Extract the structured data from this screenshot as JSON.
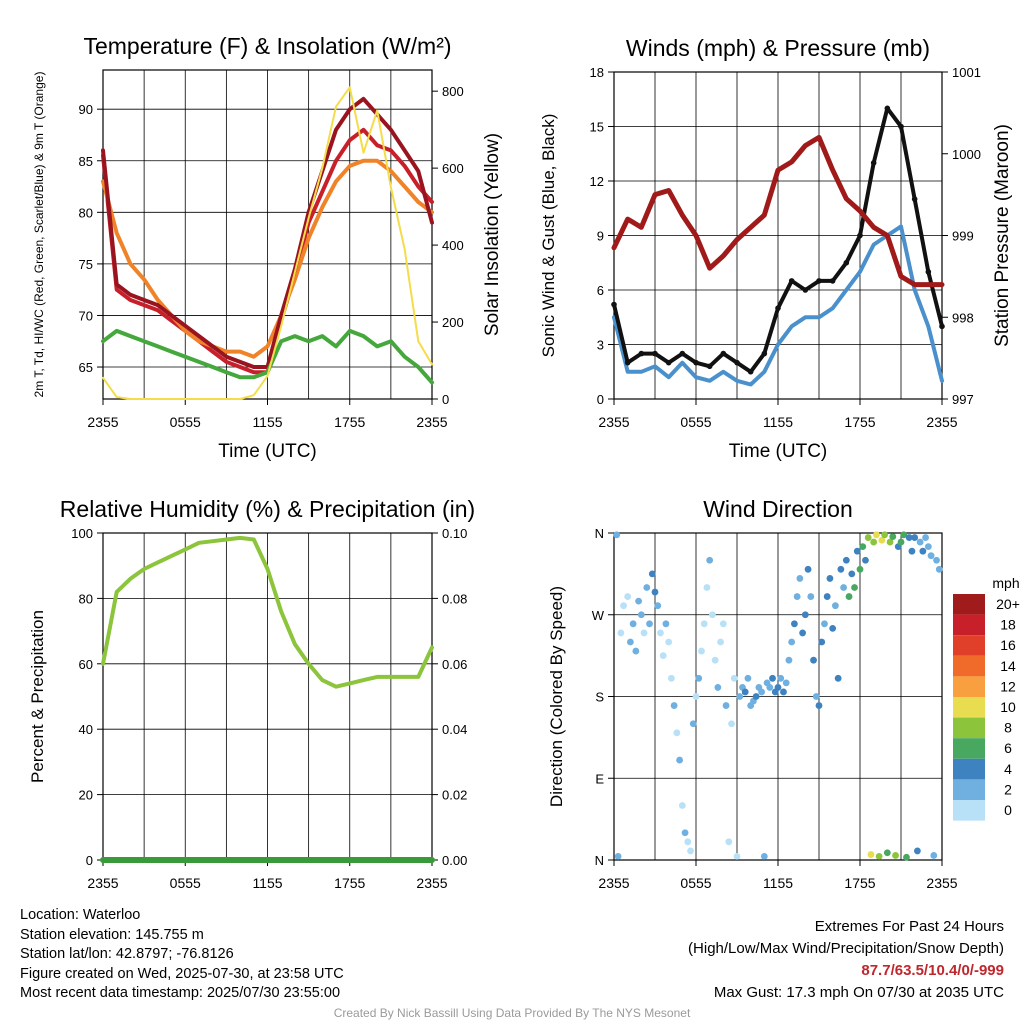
{
  "chart_data": [
    {
      "type": "line",
      "title": "Temperature (F) & Insolation (W/m²)",
      "xlabel": "Time (UTC)",
      "ylabel_left": "2m T, Td, HI/WC (Red, Green, Scarlet/Blue) & 9m T (Orange)",
      "ylabel_right": "Solar Insolation (Yellow)",
      "x_ticks": [
        "2355",
        "0555",
        "1155",
        "1755",
        "2355"
      ],
      "y_ticks_left": [
        "65",
        "70",
        "75",
        "80",
        "85",
        "90"
      ],
      "y_ticks_right": [
        "0",
        "200",
        "400",
        "600",
        "800"
      ],
      "ylim_left": [
        61.9,
        93.8
      ],
      "ylim_right": [
        0,
        855
      ],
      "grid": true,
      "x_hours": [
        0,
        1,
        2,
        3,
        4,
        5,
        6,
        7,
        8,
        9,
        10,
        11,
        12,
        13,
        14,
        15,
        16,
        17,
        18,
        19,
        20,
        21,
        22,
        23,
        24
      ],
      "series": [
        {
          "key": "t2m",
          "color": "#c8202a",
          "axis": "left",
          "values": [
            85.5,
            72.5,
            71.5,
            71,
            70.5,
            69.5,
            68.5,
            67.5,
            66.5,
            65.5,
            65,
            64.5,
            64.5,
            69.5,
            74,
            79,
            82,
            85,
            87,
            88,
            86.5,
            86,
            84.5,
            82.5,
            81
          ]
        },
        {
          "key": "t9m",
          "color": "#f08228",
          "axis": "left",
          "values": [
            83,
            78,
            75,
            73.5,
            71.5,
            70,
            68.5,
            67.5,
            67,
            66.5,
            66.5,
            66,
            67,
            70,
            73.5,
            77.5,
            80.5,
            83,
            84.5,
            85,
            85,
            84,
            82.5,
            81,
            80
          ]
        },
        {
          "key": "hi",
          "color": "#9a1420",
          "axis": "left",
          "values": [
            86,
            73,
            72,
            71.5,
            71,
            70,
            69,
            68,
            67,
            66,
            65.5,
            65,
            65,
            70,
            74.5,
            80,
            84,
            88,
            90,
            91,
            89.5,
            88,
            86,
            84,
            79
          ]
        },
        {
          "key": "td",
          "color": "#45a83c",
          "axis": "left",
          "values": [
            67.5,
            68.5,
            68,
            67.5,
            67,
            66.5,
            66,
            65.5,
            65,
            64.5,
            64,
            64,
            64.5,
            67.5,
            68,
            67.5,
            68,
            67,
            68.5,
            68,
            67,
            67.5,
            66,
            65,
            63.5
          ]
        },
        {
          "key": "solar",
          "color": "#f5dc4a",
          "axis": "right",
          "values": [
            55,
            5,
            0,
            0,
            0,
            0,
            0,
            0,
            0,
            0,
            0,
            10,
            60,
            190,
            330,
            470,
            600,
            760,
            810,
            640,
            750,
            550,
            390,
            150,
            90
          ]
        }
      ]
    },
    {
      "type": "line",
      "title": "Winds (mph) & Pressure (mb)",
      "xlabel": "Time (UTC)",
      "ylabel_left": "Sonic Wind & Gust (Blue, Black)",
      "ylabel_right": "Station Pressure (Maroon)",
      "x_ticks": [
        "2355",
        "0555",
        "1155",
        "1755",
        "2355"
      ],
      "y_ticks_left": [
        "0",
        "3",
        "6",
        "9",
        "12",
        "15",
        "18"
      ],
      "y_ticks_right": [
        "997",
        "998",
        "999",
        "1000",
        "1001"
      ],
      "ylim_left": [
        0,
        18
      ],
      "ylim_right": [
        997,
        1001
      ],
      "grid": true,
      "x_hours": [
        0,
        1,
        2,
        3,
        4,
        5,
        6,
        7,
        8,
        9,
        10,
        11,
        12,
        13,
        14,
        15,
        16,
        17,
        18,
        19,
        20,
        21,
        22,
        23,
        24
      ],
      "series": [
        {
          "key": "wind",
          "color": "#4a90cc",
          "axis": "left",
          "values": [
            4.5,
            1.5,
            1.5,
            1.8,
            1.2,
            2,
            1.2,
            1,
            1.5,
            1,
            0.8,
            1.5,
            3,
            4,
            4.5,
            4.5,
            5,
            6,
            7,
            8.5,
            9,
            9.5,
            6,
            4,
            1
          ]
        },
        {
          "key": "gust",
          "color": "#111111",
          "axis": "left",
          "values": [
            5.2,
            2,
            2.5,
            2.5,
            2,
            2.5,
            2,
            1.8,
            2.5,
            2,
            1.5,
            2.5,
            5,
            6.5,
            6,
            6.5,
            6.5,
            7.5,
            9,
            13,
            16,
            15,
            11,
            7,
            4
          ]
        },
        {
          "key": "pressure",
          "color": "#a01a1a",
          "axis": "right",
          "values": [
            998.85,
            999.2,
            999.1,
            999.5,
            999.55,
            999.25,
            999.0,
            998.6,
            998.75,
            998.95,
            999.1,
            999.25,
            999.8,
            999.9,
            1000.1,
            1000.2,
            999.8,
            999.45,
            999.3,
            999.1,
            999.0,
            998.5,
            998.4,
            998.4,
            998.4
          ]
        }
      ]
    },
    {
      "type": "line",
      "title": "Relative Humidity (%) & Precipitation (in)",
      "ylabel_left": "Percent & Precipitation",
      "x_ticks": [
        "2355",
        "0555",
        "1155",
        "1755",
        "2355"
      ],
      "y_ticks_left": [
        "0",
        "20",
        "40",
        "60",
        "80",
        "100"
      ],
      "y_ticks_right": [
        "0.00",
        "0.02",
        "0.04",
        "0.06",
        "0.08",
        "0.10"
      ],
      "ylim_left": [
        0,
        100
      ],
      "ylim_right": [
        0,
        0.1
      ],
      "grid": true,
      "x_hours": [
        0,
        1,
        2,
        3,
        4,
        5,
        6,
        7,
        8,
        9,
        10,
        11,
        12,
        13,
        14,
        15,
        16,
        17,
        18,
        19,
        20,
        21,
        22,
        23,
        24
      ],
      "series": [
        {
          "key": "rh",
          "color": "#8cc43c",
          "axis": "left",
          "values": [
            60,
            82,
            86,
            89,
            91,
            93,
            95,
            97,
            97.5,
            98,
            98.5,
            98,
            89,
            76,
            66,
            60,
            55,
            53,
            54,
            55,
            56,
            56,
            56,
            56,
            65
          ]
        },
        {
          "key": "precip",
          "color": "#3a9a3a",
          "axis": "right",
          "values": [
            0,
            0,
            0,
            0,
            0,
            0,
            0,
            0,
            0,
            0,
            0,
            0,
            0,
            0,
            0,
            0,
            0,
            0,
            0,
            0,
            0,
            0,
            0,
            0,
            0
          ]
        }
      ]
    },
    {
      "type": "scatter",
      "title": "Wind Direction",
      "ylabel": "Direction (Colored By Speed)",
      "x_ticks": [
        "2355",
        "0555",
        "1155",
        "1755",
        "2355"
      ],
      "y_ticks": [
        "N",
        "E",
        "S",
        "W",
        "N"
      ],
      "ylim": [
        0,
        360
      ],
      "grid": true,
      "colorbar": {
        "title": "mph",
        "labels": [
          "20+",
          "18",
          "16",
          "14",
          "12",
          "10",
          "8",
          "6",
          "4",
          "2",
          "0"
        ],
        "colors": [
          "#a01c1c",
          "#c8202a",
          "#e0402a",
          "#f06a2a",
          "#f8a040",
          "#e8dc50",
          "#8cc43c",
          "#48a860",
          "#3f82c0",
          "#6fb0e0",
          "#b8e0f6"
        ]
      },
      "points": [
        {
          "h": 0.2,
          "dir": 358,
          "spd": 3
        },
        {
          "h": 0.3,
          "dir": 4,
          "spd": 2
        },
        {
          "h": 0.5,
          "dir": 250,
          "spd": 1
        },
        {
          "h": 0.7,
          "dir": 280,
          "spd": 1
        },
        {
          "h": 1.0,
          "dir": 290,
          "spd": 1
        },
        {
          "h": 1.2,
          "dir": 240,
          "spd": 2
        },
        {
          "h": 1.4,
          "dir": 260,
          "spd": 2
        },
        {
          "h": 1.6,
          "dir": 230,
          "spd": 3
        },
        {
          "h": 1.8,
          "dir": 285,
          "spd": 2
        },
        {
          "h": 2.0,
          "dir": 270,
          "spd": 3
        },
        {
          "h": 2.2,
          "dir": 250,
          "spd": 1
        },
        {
          "h": 2.4,
          "dir": 300,
          "spd": 2
        },
        {
          "h": 2.6,
          "dir": 260,
          "spd": 3
        },
        {
          "h": 2.8,
          "dir": 315,
          "spd": 4
        },
        {
          "h": 3.0,
          "dir": 295,
          "spd": 4
        },
        {
          "h": 3.2,
          "dir": 280,
          "spd": 2
        },
        {
          "h": 3.4,
          "dir": 250,
          "spd": 1
        },
        {
          "h": 3.6,
          "dir": 225,
          "spd": 1
        },
        {
          "h": 3.8,
          "dir": 260,
          "spd": 2
        },
        {
          "h": 4.0,
          "dir": 240,
          "spd": 1
        },
        {
          "h": 4.2,
          "dir": 200,
          "spd": 1
        },
        {
          "h": 4.4,
          "dir": 170,
          "spd": 2
        },
        {
          "h": 4.6,
          "dir": 140,
          "spd": 1
        },
        {
          "h": 4.8,
          "dir": 110,
          "spd": 2
        },
        {
          "h": 5.0,
          "dir": 60,
          "spd": 1
        },
        {
          "h": 5.2,
          "dir": 30,
          "spd": 2
        },
        {
          "h": 5.4,
          "dir": 20,
          "spd": 1
        },
        {
          "h": 5.6,
          "dir": 10,
          "spd": 1
        },
        {
          "h": 5.8,
          "dir": 150,
          "spd": 2
        },
        {
          "h": 6.0,
          "dir": 180,
          "spd": 1
        },
        {
          "h": 6.2,
          "dir": 200,
          "spd": 2
        },
        {
          "h": 6.4,
          "dir": 230,
          "spd": 1
        },
        {
          "h": 6.6,
          "dir": 260,
          "spd": 1
        },
        {
          "h": 6.8,
          "dir": 300,
          "spd": 1
        },
        {
          "h": 7.0,
          "dir": 330,
          "spd": 2
        },
        {
          "h": 7.2,
          "dir": 270,
          "spd": 1
        },
        {
          "h": 7.4,
          "dir": 220,
          "spd": 1
        },
        {
          "h": 7.6,
          "dir": 190,
          "spd": 2
        },
        {
          "h": 7.8,
          "dir": 240,
          "spd": 1
        },
        {
          "h": 8.0,
          "dir": 260,
          "spd": 1
        },
        {
          "h": 8.2,
          "dir": 170,
          "spd": 2
        },
        {
          "h": 8.4,
          "dir": 20,
          "spd": 1
        },
        {
          "h": 8.6,
          "dir": 150,
          "spd": 1
        },
        {
          "h": 8.8,
          "dir": 200,
          "spd": 1
        },
        {
          "h": 9.0,
          "dir": 4,
          "spd": 1
        },
        {
          "h": 9.2,
          "dir": 180,
          "spd": 2
        },
        {
          "h": 9.4,
          "dir": 190,
          "spd": 3
        },
        {
          "h": 9.6,
          "dir": 185,
          "spd": 4
        },
        {
          "h": 9.8,
          "dir": 200,
          "spd": 3
        },
        {
          "h": 10.0,
          "dir": 170,
          "spd": 2
        },
        {
          "h": 10.2,
          "dir": 175,
          "spd": 3
        },
        {
          "h": 10.4,
          "dir": 180,
          "spd": 4
        },
        {
          "h": 10.6,
          "dir": 190,
          "spd": 3
        },
        {
          "h": 10.8,
          "dir": 185,
          "spd": 3
        },
        {
          "h": 11.0,
          "dir": 4,
          "spd": 2
        },
        {
          "h": 11.2,
          "dir": 195,
          "spd": 2
        },
        {
          "h": 11.4,
          "dir": 190,
          "spd": 3
        },
        {
          "h": 11.6,
          "dir": 200,
          "spd": 4
        },
        {
          "h": 11.8,
          "dir": 185,
          "spd": 4
        },
        {
          "h": 12.0,
          "dir": 190,
          "spd": 4
        },
        {
          "h": 12.2,
          "dir": 200,
          "spd": 3
        },
        {
          "h": 12.4,
          "dir": 185,
          "spd": 4
        },
        {
          "h": 12.6,
          "dir": 195,
          "spd": 3
        },
        {
          "h": 12.8,
          "dir": 220,
          "spd": 3
        },
        {
          "h": 13.0,
          "dir": 240,
          "spd": 2
        },
        {
          "h": 13.2,
          "dir": 260,
          "spd": 4
        },
        {
          "h": 13.4,
          "dir": 290,
          "spd": 3
        },
        {
          "h": 13.6,
          "dir": 310,
          "spd": 2
        },
        {
          "h": 13.8,
          "dir": 250,
          "spd": 4
        },
        {
          "h": 14.0,
          "dir": 270,
          "spd": 4
        },
        {
          "h": 14.2,
          "dir": 320,
          "spd": 4
        },
        {
          "h": 14.4,
          "dir": 290,
          "spd": 3
        },
        {
          "h": 14.6,
          "dir": 220,
          "spd": 4
        },
        {
          "h": 14.8,
          "dir": 180,
          "spd": 3
        },
        {
          "h": 15.0,
          "dir": 170,
          "spd": 4
        },
        {
          "h": 15.2,
          "dir": 240,
          "spd": 4
        },
        {
          "h": 15.4,
          "dir": 260,
          "spd": 3
        },
        {
          "h": 15.6,
          "dir": 290,
          "spd": 4
        },
        {
          "h": 15.8,
          "dir": 310,
          "spd": 5
        },
        {
          "h": 16.0,
          "dir": 255,
          "spd": 4
        },
        {
          "h": 16.2,
          "dir": 280,
          "spd": 3
        },
        {
          "h": 16.4,
          "dir": 200,
          "spd": 4
        },
        {
          "h": 16.6,
          "dir": 320,
          "spd": 4
        },
        {
          "h": 16.8,
          "dir": 300,
          "spd": 3
        },
        {
          "h": 17.0,
          "dir": 330,
          "spd": 4
        },
        {
          "h": 17.2,
          "dir": 290,
          "spd": 6
        },
        {
          "h": 17.4,
          "dir": 315,
          "spd": 5
        },
        {
          "h": 17.6,
          "dir": 300,
          "spd": 7
        },
        {
          "h": 17.8,
          "dir": 340,
          "spd": 5
        },
        {
          "h": 18.0,
          "dir": 320,
          "spd": 6
        },
        {
          "h": 18.2,
          "dir": 345,
          "spd": 7
        },
        {
          "h": 18.4,
          "dir": 330,
          "spd": 4
        },
        {
          "h": 18.6,
          "dir": 355,
          "spd": 8
        },
        {
          "h": 18.8,
          "dir": 6,
          "spd": 10
        },
        {
          "h": 19.0,
          "dir": 350,
          "spd": 9
        },
        {
          "h": 19.2,
          "dir": 358,
          "spd": 11
        },
        {
          "h": 19.4,
          "dir": 4,
          "spd": 9
        },
        {
          "h": 19.6,
          "dir": 352,
          "spd": 10
        },
        {
          "h": 19.8,
          "dir": 358,
          "spd": 8
        },
        {
          "h": 20.0,
          "dir": 8,
          "spd": 7
        },
        {
          "h": 20.2,
          "dir": 350,
          "spd": 9
        },
        {
          "h": 20.4,
          "dir": 356,
          "spd": 6
        },
        {
          "h": 20.6,
          "dir": 5,
          "spd": 8
        },
        {
          "h": 20.8,
          "dir": 345,
          "spd": 5
        },
        {
          "h": 21.0,
          "dir": 350,
          "spd": 6
        },
        {
          "h": 21.2,
          "dir": 358,
          "spd": 7
        },
        {
          "h": 21.4,
          "dir": 3,
          "spd": 6
        },
        {
          "h": 21.6,
          "dir": 355,
          "spd": 4
        },
        {
          "h": 21.8,
          "dir": 340,
          "spd": 4
        },
        {
          "h": 22.0,
          "dir": 355,
          "spd": 5
        },
        {
          "h": 22.2,
          "dir": 10,
          "spd": 4
        },
        {
          "h": 22.4,
          "dir": 350,
          "spd": 3
        },
        {
          "h": 22.6,
          "dir": 340,
          "spd": 4
        },
        {
          "h": 22.8,
          "dir": 355,
          "spd": 3
        },
        {
          "h": 23.0,
          "dir": 345,
          "spd": 2
        },
        {
          "h": 23.2,
          "dir": 335,
          "spd": 3
        },
        {
          "h": 23.4,
          "dir": 5,
          "spd": 2
        },
        {
          "h": 23.6,
          "dir": 330,
          "spd": 2
        },
        {
          "h": 23.8,
          "dir": 320,
          "spd": 2
        }
      ]
    }
  ],
  "footer": {
    "location": "Location: Waterloo",
    "elevation": "Station elevation: 145.755 m",
    "latlon": "Station lat/lon: 42.8797; -76.8126",
    "created": "Figure created on Wed, 2025-07-30, at 23:58 UTC",
    "recent": "Most recent data timestamp: 2025/07/30 23:55:00",
    "extremes_title": "Extremes For Past 24 Hours",
    "extremes_sub": "(High/Low/Max Wind/Precipitation/Snow Depth)",
    "extremes_values": "87.7/63.5/10.4/0/-999",
    "max_gust": "Max Gust: 17.3 mph On 07/30 at 2035 UTC",
    "credit": "Created By Nick Bassill Using Data Provided By The NYS Mesonet"
  }
}
